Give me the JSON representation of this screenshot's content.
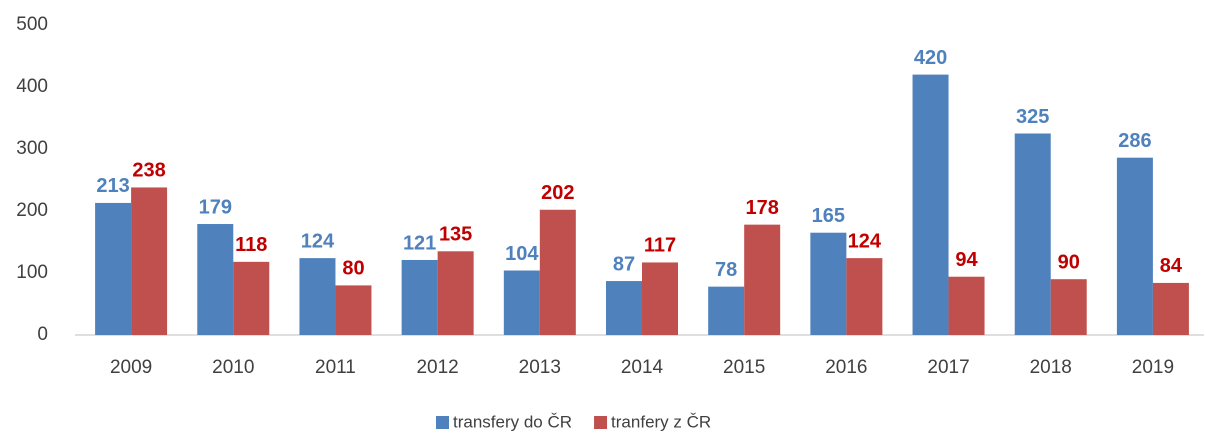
{
  "chart_data": {
    "type": "bar",
    "categories": [
      "2009",
      "2010",
      "2011",
      "2012",
      "2013",
      "2014",
      "2015",
      "2016",
      "2017",
      "2018",
      "2019"
    ],
    "series": [
      {
        "name": "transfery do ČR",
        "color": "#4f81bd",
        "label_color": "#4f81bd",
        "values": [
          213,
          179,
          124,
          121,
          104,
          87,
          78,
          165,
          420,
          325,
          286
        ]
      },
      {
        "name": "tranfery z ČR",
        "color": "#c0504d",
        "label_color": "#c00000",
        "values": [
          238,
          118,
          80,
          135,
          202,
          117,
          178,
          124,
          94,
          90,
          84
        ]
      }
    ],
    "ylim": [
      0,
      500
    ],
    "yticks": [
      0,
      100,
      200,
      300,
      400,
      500
    ],
    "grid": false,
    "legend": "bottom"
  }
}
